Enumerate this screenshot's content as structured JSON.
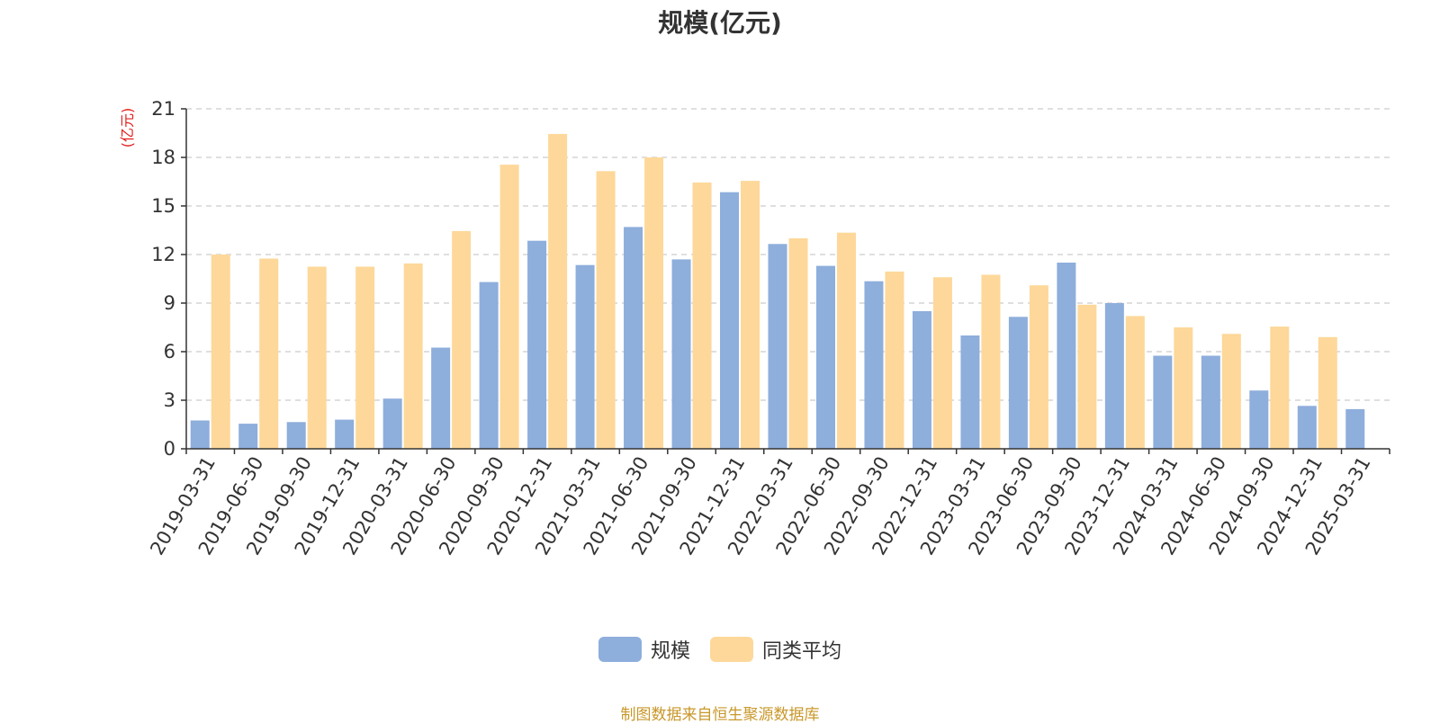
{
  "chart_data": {
    "type": "bar",
    "title": "规模(亿元)",
    "ylabel": "(亿元)",
    "xlabel": "",
    "ylim": [
      0,
      21
    ],
    "yticks": [
      0,
      3,
      6,
      9,
      12,
      15,
      18,
      21
    ],
    "grid": true,
    "legend_position": "bottom-center",
    "categories": [
      "2019-03-31",
      "2019-06-30",
      "2019-09-30",
      "2019-12-31",
      "2020-03-31",
      "2020-06-30",
      "2020-09-30",
      "2020-12-31",
      "2021-03-31",
      "2021-06-30",
      "2021-09-30",
      "2021-12-31",
      "2022-03-31",
      "2022-06-30",
      "2022-09-30",
      "2022-12-31",
      "2023-03-31",
      "2023-06-30",
      "2023-09-30",
      "2023-12-31",
      "2024-03-31",
      "2024-06-30",
      "2024-09-30",
      "2024-12-31",
      "2025-03-31"
    ],
    "series": [
      {
        "name": "规模",
        "color": "#8eaedc",
        "values": [
          1.75,
          1.55,
          1.65,
          1.8,
          3.1,
          6.25,
          10.3,
          12.85,
          11.35,
          13.7,
          11.7,
          15.85,
          12.65,
          11.3,
          10.35,
          8.5,
          7.0,
          8.15,
          11.5,
          9.0,
          5.75,
          5.75,
          3.6,
          2.65,
          2.45
        ]
      },
      {
        "name": "同类平均",
        "color": "#fdd89a",
        "values": [
          12.0,
          11.75,
          11.25,
          11.25,
          11.45,
          13.45,
          17.55,
          19.45,
          17.15,
          18.0,
          16.45,
          16.55,
          13.0,
          13.35,
          10.95,
          10.6,
          10.75,
          10.1,
          8.9,
          8.2,
          7.5,
          7.1,
          7.55,
          6.9,
          null
        ]
      }
    ]
  },
  "footer": {
    "source": "制图数据来自恒生聚源数据库"
  },
  "colors": {
    "axis": "#333333",
    "grid": "#cccccc",
    "ylabel": "#e0201b",
    "source": "#c9972a"
  }
}
